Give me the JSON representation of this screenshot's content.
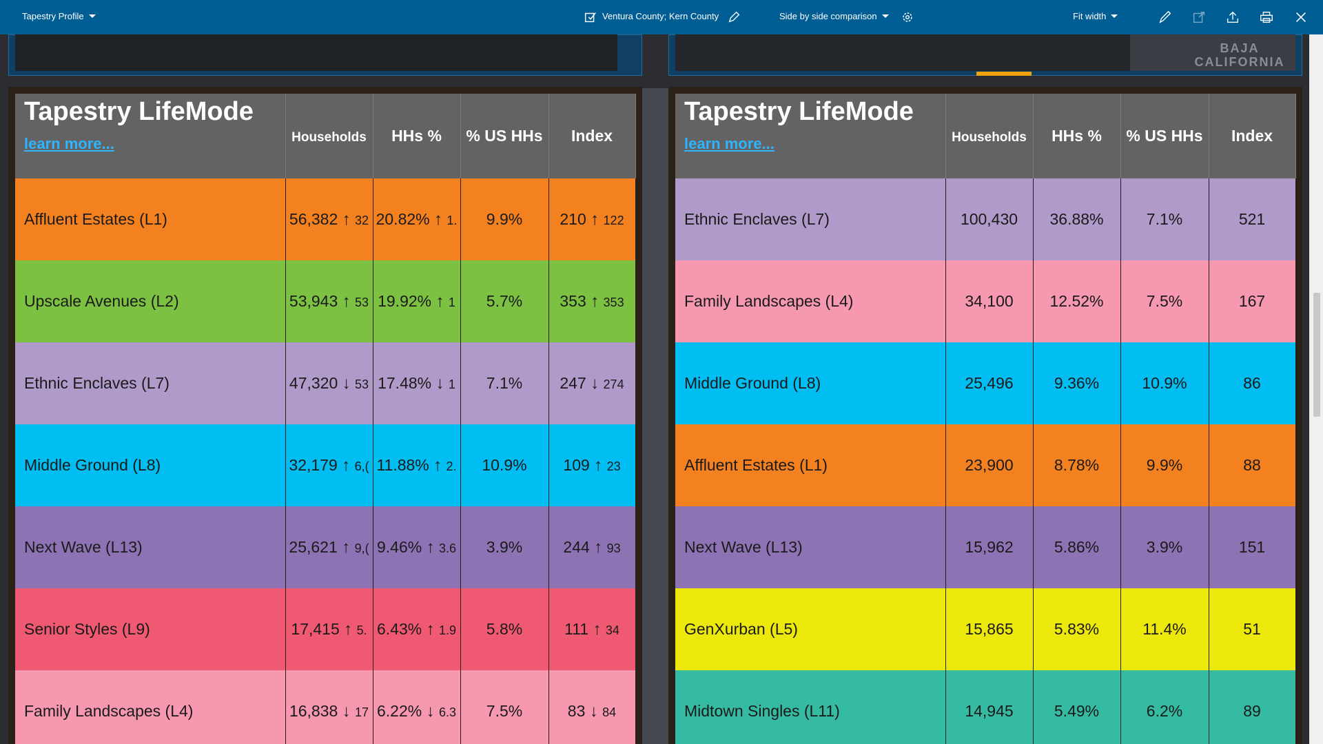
{
  "toolbar": {
    "profile_label": "Tapestry Profile",
    "area_label": "Ventura County; Kern County",
    "view_label": "Side by side comparison",
    "zoom_label": "Fit width",
    "icons": [
      "checkbox-icon",
      "pencil-icon",
      "gear-icon",
      "draw-icon",
      "share-icon",
      "upload-icon",
      "print-icon",
      "close-icon"
    ]
  },
  "map_right_text": "BAJA CALIFORNIA",
  "left_table": {
    "title": "Tapestry LifeMode",
    "learn_more": "learn more...",
    "columns": [
      "Households",
      "HHs %",
      "% US HHs",
      "Index"
    ],
    "rows": [
      {
        "name": "Affluent Estates (L1)",
        "color": "#f48120",
        "households": "56,382",
        "hh_arrow": "↑",
        "hh_delta": "32",
        "pct": "20.82%",
        "pct_arrow": "↑",
        "pct_delta": "1.",
        "us": "9.9%",
        "index": "210",
        "idx_arrow": "↑",
        "idx_delta": "122"
      },
      {
        "name": "Upscale Avenues (L2)",
        "color": "#7dc142",
        "households": "53,943",
        "hh_arrow": "↑",
        "hh_delta": "53",
        "pct": "19.92%",
        "pct_arrow": "↑",
        "pct_delta": "1",
        "us": "5.7%",
        "index": "353",
        "idx_arrow": "↑",
        "idx_delta": "353"
      },
      {
        "name": "Ethnic Enclaves (L7)",
        "color": "#b09ac9",
        "households": "47,320",
        "hh_arrow": "↓",
        "hh_delta": "53",
        "pct": "17.48%",
        "pct_arrow": "↓",
        "pct_delta": "1",
        "us": "7.1%",
        "index": "247",
        "idx_arrow": "↓",
        "idx_delta": "274"
      },
      {
        "name": "Middle Ground (L8)",
        "color": "#00bdf2",
        "households": "32,179",
        "hh_arrow": "↑",
        "hh_delta": "6,(",
        "pct": "11.88%",
        "pct_arrow": "↑",
        "pct_delta": "2.",
        "us": "10.9%",
        "index": "109",
        "idx_arrow": "↑",
        "idx_delta": "23"
      },
      {
        "name": "Next Wave (L13)",
        "color": "#8d73b4",
        "households": "25,621",
        "hh_arrow": "↑",
        "hh_delta": "9,(",
        "pct": "9.46%",
        "pct_arrow": "↑",
        "pct_delta": "3.6",
        "us": "3.9%",
        "index": "244",
        "idx_arrow": "↑",
        "idx_delta": "93"
      },
      {
        "name": "Senior Styles (L9)",
        "color": "#f05972",
        "households": "17,415",
        "hh_arrow": "↑",
        "hh_delta": "5.",
        "pct": "6.43%",
        "pct_arrow": "↑",
        "pct_delta": "1.9",
        "us": "5.8%",
        "index": "111",
        "idx_arrow": "↑",
        "idx_delta": "34"
      },
      {
        "name": "Family Landscapes (L4)",
        "color": "#f598b0",
        "households": "16,838",
        "hh_arrow": "↓",
        "hh_delta": "17",
        "pct": "6.22%",
        "pct_arrow": "↓",
        "pct_delta": "6.3",
        "us": "7.5%",
        "index": "83",
        "idx_arrow": "↓",
        "idx_delta": "84"
      }
    ]
  },
  "right_table": {
    "title": "Tapestry LifeMode",
    "learn_more": "learn more...",
    "columns": [
      "Households",
      "HHs %",
      "% US HHs",
      "Index"
    ],
    "rows": [
      {
        "name": "Ethnic Enclaves (L7)",
        "color": "#b09ac9",
        "households": "100,430",
        "pct": "36.88%",
        "us": "7.1%",
        "index": "521"
      },
      {
        "name": "Family Landscapes (L4)",
        "color": "#f598b0",
        "households": "34,100",
        "pct": "12.52%",
        "us": "7.5%",
        "index": "167"
      },
      {
        "name": "Middle Ground (L8)",
        "color": "#00bdf2",
        "households": "25,496",
        "pct": "9.36%",
        "us": "10.9%",
        "index": "86"
      },
      {
        "name": "Affluent Estates (L1)",
        "color": "#f48120",
        "households": "23,900",
        "pct": "8.78%",
        "us": "9.9%",
        "index": "88"
      },
      {
        "name": "Next Wave (L13)",
        "color": "#8d73b4",
        "households": "15,962",
        "pct": "5.86%",
        "us": "3.9%",
        "index": "151"
      },
      {
        "name": "GenXurban (L5)",
        "color": "#ede80c",
        "households": "15,865",
        "pct": "5.83%",
        "us": "11.4%",
        "index": "51"
      },
      {
        "name": "Midtown Singles (L11)",
        "color": "#36bba3",
        "households": "14,945",
        "pct": "5.49%",
        "us": "6.2%",
        "index": "89"
      }
    ]
  }
}
